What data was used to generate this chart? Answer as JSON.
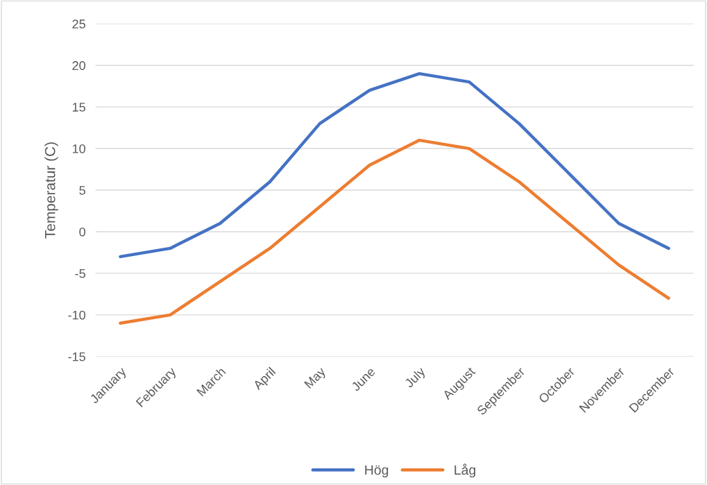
{
  "chart_data": {
    "type": "line",
    "ylabel": "Temperatur (C)",
    "categories": [
      "January",
      "February",
      "March",
      "April",
      "May",
      "June",
      "July",
      "August",
      "September",
      "October",
      "November",
      "December"
    ],
    "series": [
      {
        "name": "Hög",
        "color": "#4472c4",
        "values": [
          -3,
          -2,
          1,
          6,
          13,
          17,
          19,
          18,
          13,
          7,
          1,
          -2
        ]
      },
      {
        "name": "Låg",
        "color": "#ed7d31",
        "values": [
          -11,
          -10,
          -6,
          -2,
          3,
          8,
          11,
          10,
          6,
          1,
          -4,
          -8
        ]
      }
    ],
    "ylim": [
      -15,
      25
    ],
    "yticks": [
      -15,
      -10,
      -5,
      0,
      5,
      10,
      15,
      20,
      25
    ],
    "grid": "y",
    "legend": "bottom",
    "marker": "none",
    "line_style": "solid"
  }
}
